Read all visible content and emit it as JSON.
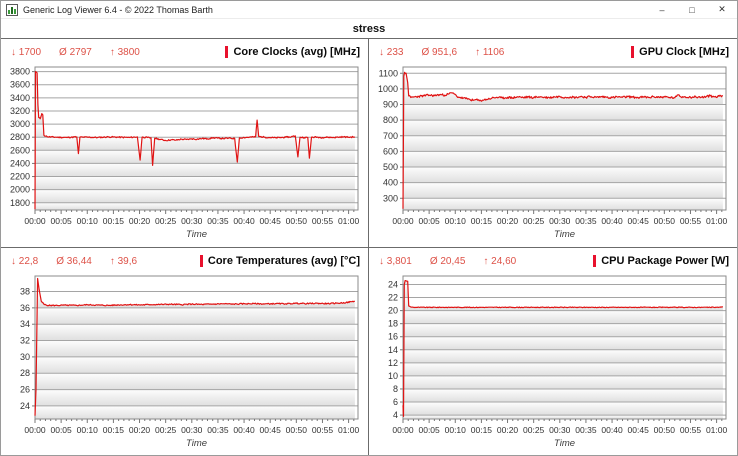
{
  "window": {
    "title": "Generic Log Viewer 6.4 - © 2022 Thomas Barth",
    "controls": {
      "minimize": "–",
      "maximize": "□",
      "close": "✕"
    }
  },
  "header": {
    "title": "stress"
  },
  "colors": {
    "line": "#e01313",
    "stats_text": "#dd5147",
    "marker": "#e8112d",
    "grid": "#a5a5a5",
    "plot_border": "#8b8b8b",
    "band_top": "#fdfdfd",
    "band_bottom": "#dfdfdf",
    "divider": "#6b6b6b",
    "tick_text": "#333333",
    "time_label": "#3c3c3c"
  },
  "axis": {
    "x_label": "Time",
    "x_tick_labels": [
      "00:00",
      "00:05",
      "00:10",
      "00:15",
      "00:20",
      "00:25",
      "00:30",
      "00:35",
      "00:40",
      "00:45",
      "00:50",
      "00:55",
      "01:00"
    ],
    "x_tick_minutes": [
      0,
      5,
      10,
      15,
      20,
      25,
      30,
      35,
      40,
      45,
      50,
      55,
      60
    ]
  },
  "chart_data": [
    {
      "type": "line",
      "title": "Core Clocks (avg) [MHz]",
      "stats": {
        "min": "↓ 1700",
        "avg": "Ø 2797",
        "max": "↑ 3800"
      },
      "xlabel": "Time",
      "xlim": [
        0,
        61.8
      ],
      "ylim": [
        1690,
        3870
      ],
      "yticks": [
        1800,
        2000,
        2200,
        2400,
        2600,
        2800,
        3000,
        3200,
        3400,
        3600,
        3800
      ],
      "noise": 10,
      "seed": 11,
      "points": [
        [
          0,
          1700
        ],
        [
          0.1,
          3800
        ],
        [
          0.4,
          3780
        ],
        [
          0.55,
          3300
        ],
        [
          0.7,
          3100
        ],
        [
          1.0,
          3080
        ],
        [
          1.3,
          3160
        ],
        [
          1.5,
          3140
        ],
        [
          1.7,
          2830
        ],
        [
          2.5,
          2805
        ],
        [
          4,
          2800
        ],
        [
          6,
          2795
        ],
        [
          8,
          2805
        ],
        [
          8.3,
          2550
        ],
        [
          8.6,
          2800
        ],
        [
          10,
          2800
        ],
        [
          12,
          2795
        ],
        [
          14,
          2805
        ],
        [
          16,
          2800
        ],
        [
          18,
          2795
        ],
        [
          19.6,
          2805
        ],
        [
          20.1,
          2450
        ],
        [
          20.5,
          2800
        ],
        [
          21.5,
          2795
        ],
        [
          22.2,
          2790
        ],
        [
          22.5,
          2370
        ],
        [
          22.9,
          2785
        ],
        [
          24,
          2765
        ],
        [
          25,
          2750
        ],
        [
          26,
          2760
        ],
        [
          27,
          2755
        ],
        [
          28,
          2770
        ],
        [
          29,
          2765
        ],
        [
          30,
          2775
        ],
        [
          31,
          2770
        ],
        [
          32,
          2780
        ],
        [
          33,
          2775
        ],
        [
          34,
          2790
        ],
        [
          35,
          2785
        ],
        [
          36,
          2780
        ],
        [
          37,
          2785
        ],
        [
          38.2,
          2780
        ],
        [
          38.7,
          2420
        ],
        [
          39.1,
          2790
        ],
        [
          40,
          2795
        ],
        [
          41,
          2800
        ],
        [
          42.2,
          2805
        ],
        [
          42.5,
          3060
        ],
        [
          42.8,
          2810
        ],
        [
          44,
          2800
        ],
        [
          45,
          2795
        ],
        [
          46,
          2790
        ],
        [
          47,
          2795
        ],
        [
          48,
          2800
        ],
        [
          49,
          2805
        ],
        [
          49.8,
          2820
        ],
        [
          50.3,
          2500
        ],
        [
          50.7,
          2800
        ],
        [
          51.5,
          2795
        ],
        [
          52.2,
          2795
        ],
        [
          52.5,
          2480
        ],
        [
          52.9,
          2800
        ],
        [
          54,
          2800
        ],
        [
          55,
          2795
        ],
        [
          56,
          2800
        ],
        [
          57,
          2795
        ],
        [
          58,
          2800
        ],
        [
          59,
          2805
        ],
        [
          60,
          2800
        ],
        [
          61.2,
          2805
        ]
      ]
    },
    {
      "type": "line",
      "title": "GPU Clock [MHz]",
      "stats": {
        "min": "↓ 233",
        "avg": "Ø 951,6",
        "max": "↑ 1106"
      },
      "xlabel": "Time",
      "xlim": [
        0,
        61.8
      ],
      "ylim": [
        225,
        1140
      ],
      "yticks": [
        300,
        400,
        500,
        600,
        700,
        800,
        900,
        1000,
        1100
      ],
      "noise": 7,
      "seed": 23,
      "points": [
        [
          0,
          233
        ],
        [
          0.15,
          1080
        ],
        [
          0.3,
          1106
        ],
        [
          0.6,
          1100
        ],
        [
          0.9,
          1040
        ],
        [
          1.1,
          955
        ],
        [
          1.5,
          945
        ],
        [
          2,
          948
        ],
        [
          3,
          952
        ],
        [
          4,
          956
        ],
        [
          5,
          960
        ],
        [
          6,
          957
        ],
        [
          7,
          963
        ],
        [
          8,
          960
        ],
        [
          8.8,
          968
        ],
        [
          9.3,
          975
        ],
        [
          9.8,
          968
        ],
        [
          10.3,
          952
        ],
        [
          11,
          944
        ],
        [
          12,
          938
        ],
        [
          12.8,
          933
        ],
        [
          13.4,
          926
        ],
        [
          14,
          931
        ],
        [
          14.6,
          924
        ],
        [
          15.2,
          928
        ],
        [
          16,
          933
        ],
        [
          17,
          941
        ],
        [
          18,
          946
        ],
        [
          19,
          941
        ],
        [
          20,
          946
        ],
        [
          21,
          943
        ],
        [
          22,
          949
        ],
        [
          23,
          945
        ],
        [
          24,
          948
        ],
        [
          25,
          944
        ],
        [
          26,
          950
        ],
        [
          27,
          946
        ],
        [
          28,
          944
        ],
        [
          29,
          949
        ],
        [
          30,
          951
        ],
        [
          31,
          946
        ],
        [
          32,
          949
        ],
        [
          33,
          945
        ],
        [
          34,
          951
        ],
        [
          35,
          947
        ],
        [
          36,
          950
        ],
        [
          37,
          946
        ],
        [
          38,
          950
        ],
        [
          39,
          947
        ],
        [
          40,
          944
        ],
        [
          41,
          949
        ],
        [
          42,
          946
        ],
        [
          43,
          950
        ],
        [
          44,
          947
        ],
        [
          45,
          944
        ],
        [
          46,
          948
        ],
        [
          47,
          945
        ],
        [
          48,
          950
        ],
        [
          49,
          947
        ],
        [
          50,
          949
        ],
        [
          51,
          945
        ],
        [
          52,
          943
        ],
        [
          52.8,
          962
        ],
        [
          53.2,
          948
        ],
        [
          54,
          950
        ],
        [
          55,
          947
        ],
        [
          56,
          949
        ],
        [
          57,
          946
        ],
        [
          58,
          950
        ],
        [
          58.8,
          956
        ],
        [
          59.5,
          949
        ],
        [
          60.2,
          952
        ],
        [
          61.2,
          956
        ]
      ]
    },
    {
      "type": "line",
      "title": "Core Temperatures (avg) [°C]",
      "stats": {
        "min": "↓ 22,8",
        "avg": "Ø 36,44",
        "max": "↑ 39,6"
      },
      "xlabel": "Time",
      "xlim": [
        0,
        61.8
      ],
      "ylim": [
        22.4,
        39.9
      ],
      "yticks": [
        24,
        26,
        28,
        30,
        32,
        34,
        36,
        38
      ],
      "noise": 0.07,
      "seed": 5,
      "points": [
        [
          0,
          22.8
        ],
        [
          0.2,
          26
        ],
        [
          0.5,
          39.6
        ],
        [
          0.8,
          38.2
        ],
        [
          1.2,
          36.8
        ],
        [
          1.8,
          36.4
        ],
        [
          2.5,
          36.3
        ],
        [
          4,
          36.3
        ],
        [
          6,
          36.32
        ],
        [
          8,
          36.3
        ],
        [
          10,
          36.38
        ],
        [
          12,
          36.34
        ],
        [
          14,
          36.3
        ],
        [
          16,
          36.36
        ],
        [
          18,
          36.4
        ],
        [
          20,
          36.36
        ],
        [
          22,
          36.4
        ],
        [
          24,
          36.42
        ],
        [
          26,
          36.44
        ],
        [
          28,
          36.4
        ],
        [
          30,
          36.46
        ],
        [
          32,
          36.42
        ],
        [
          34,
          36.46
        ],
        [
          36,
          36.5
        ],
        [
          38,
          36.46
        ],
        [
          40,
          36.5
        ],
        [
          42,
          36.52
        ],
        [
          44,
          36.48
        ],
        [
          46,
          36.52
        ],
        [
          48,
          36.5
        ],
        [
          50,
          36.56
        ],
        [
          52,
          36.52
        ],
        [
          54,
          36.56
        ],
        [
          56,
          36.52
        ],
        [
          58,
          36.58
        ],
        [
          59.5,
          36.64
        ],
        [
          60.5,
          36.75
        ],
        [
          61.2,
          36.8
        ]
      ]
    },
    {
      "type": "line",
      "title": "CPU Package Power [W]",
      "stats": {
        "min": "↓ 3,801",
        "avg": "Ø 20,45",
        "max": "↑ 24,60"
      },
      "xlabel": "Time",
      "xlim": [
        0,
        61.8
      ],
      "ylim": [
        3.4,
        25.3
      ],
      "yticks": [
        4,
        6,
        8,
        10,
        12,
        14,
        16,
        18,
        20,
        22,
        24
      ],
      "noise": 0.05,
      "seed": 9,
      "points": [
        [
          0,
          5.5
        ],
        [
          0.1,
          3.801
        ],
        [
          0.25,
          24.0
        ],
        [
          0.4,
          24.6
        ],
        [
          0.9,
          24.5
        ],
        [
          1.1,
          20.7
        ],
        [
          1.5,
          20.55
        ],
        [
          2,
          20.5
        ],
        [
          5,
          20.5
        ],
        [
          10,
          20.5
        ],
        [
          15,
          20.5
        ],
        [
          20,
          20.5
        ],
        [
          25,
          20.5
        ],
        [
          30,
          20.5
        ],
        [
          35,
          20.5
        ],
        [
          40,
          20.5
        ],
        [
          45,
          20.5
        ],
        [
          50,
          20.5
        ],
        [
          55,
          20.5
        ],
        [
          60,
          20.5
        ],
        [
          61.2,
          20.55
        ]
      ]
    }
  ]
}
